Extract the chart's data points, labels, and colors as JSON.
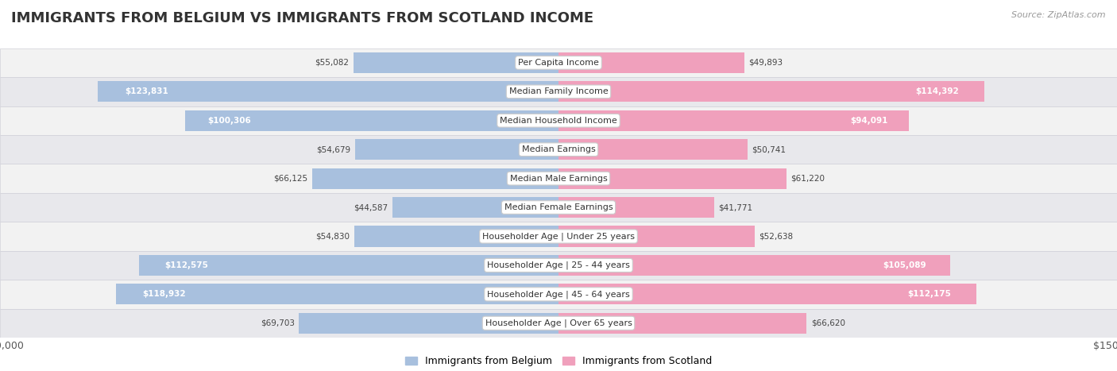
{
  "title": "IMMIGRANTS FROM BELGIUM VS IMMIGRANTS FROM SCOTLAND INCOME",
  "source": "Source: ZipAtlas.com",
  "categories": [
    "Per Capita Income",
    "Median Family Income",
    "Median Household Income",
    "Median Earnings",
    "Median Male Earnings",
    "Median Female Earnings",
    "Householder Age | Under 25 years",
    "Householder Age | 25 - 44 years",
    "Householder Age | 45 - 64 years",
    "Householder Age | Over 65 years"
  ],
  "belgium_values": [
    55082,
    123831,
    100306,
    54679,
    66125,
    44587,
    54830,
    112575,
    118932,
    69703
  ],
  "scotland_values": [
    49893,
    114392,
    94091,
    50741,
    61220,
    41771,
    52638,
    105089,
    112175,
    66620
  ],
  "belgium_color": "#a8c0de",
  "scotland_color": "#f0a0bc",
  "belgium_label": "Immigrants from Belgium",
  "scotland_label": "Immigrants from Scotland",
  "max_value": 150000,
  "title_fontsize": 13,
  "label_fontsize": 8,
  "value_fontsize": 7.5,
  "legend_fontsize": 9,
  "source_fontsize": 8,
  "inside_value_threshold": 90000
}
